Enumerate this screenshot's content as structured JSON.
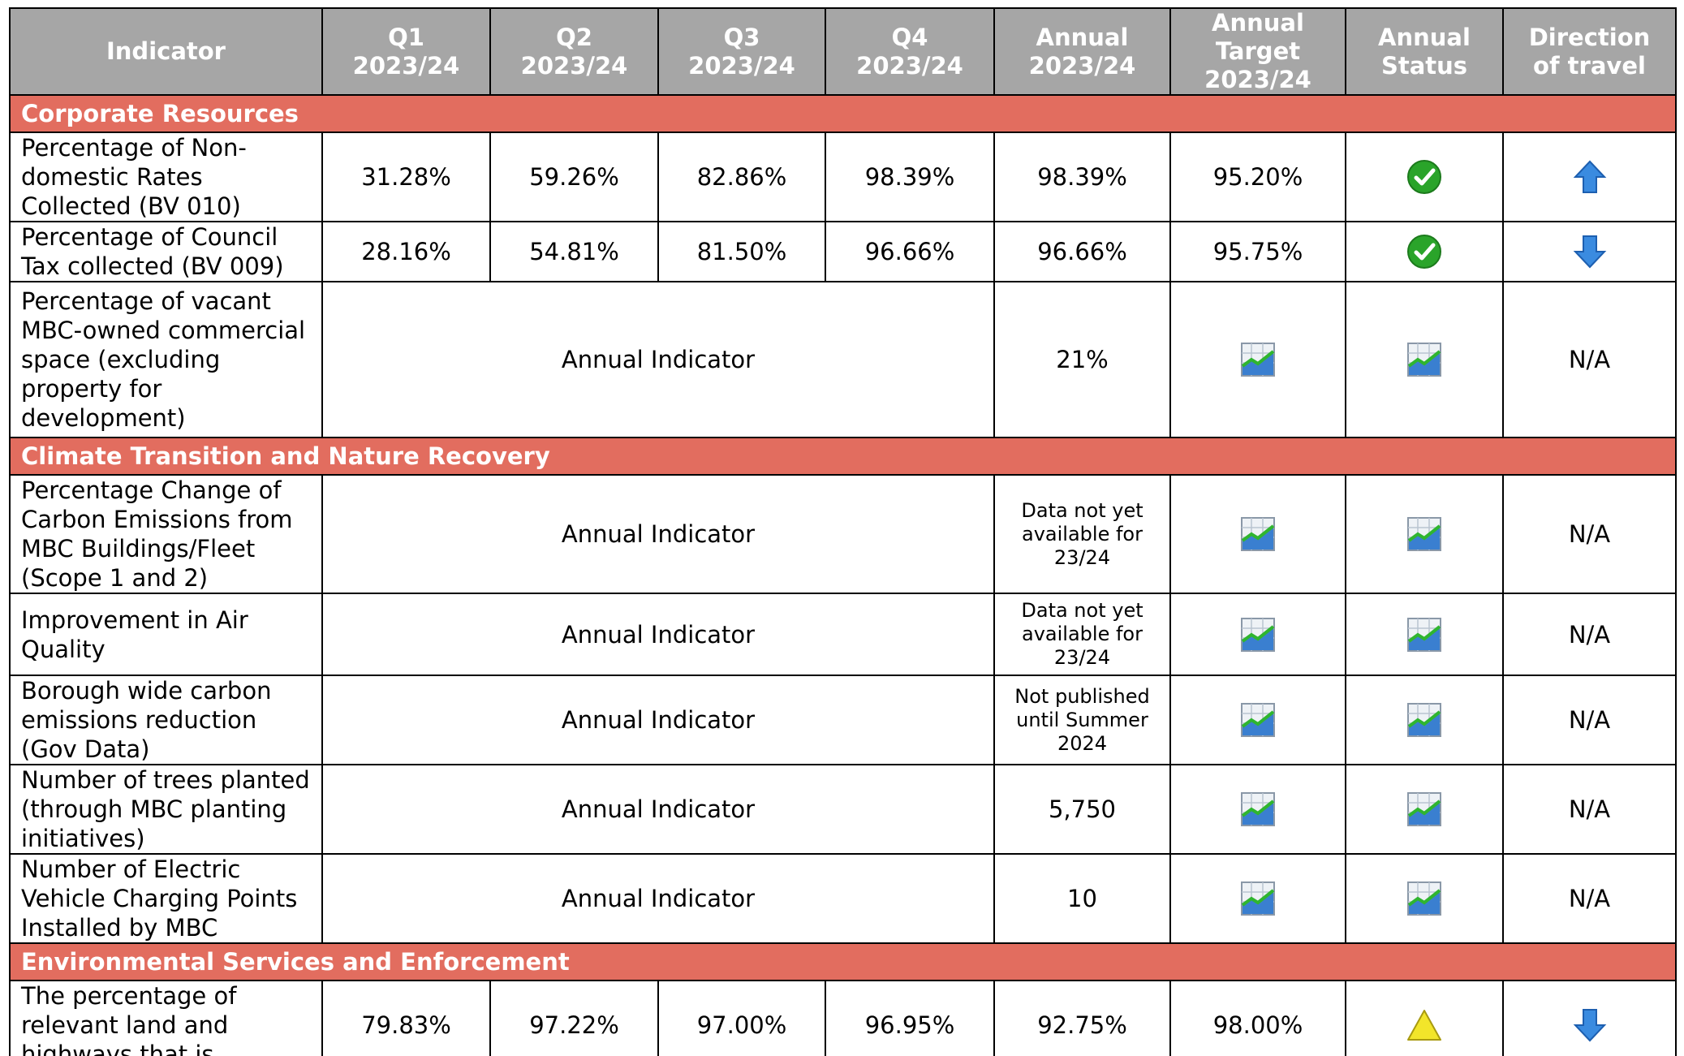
{
  "header": [
    "Indicator",
    "Q1\n2023/24",
    "Q2\n2023/24",
    "Q3\n2023/24",
    "Q4\n2023/24",
    "Annual\n2023/24",
    "Annual\nTarget\n2023/24",
    "Annual\nStatus",
    "Direction\nof travel"
  ],
  "sections": [
    {
      "title": "Corporate Resources",
      "rows": [
        {
          "indicator": "Percentage of Non-domestic Rates Collected (BV 010)",
          "cells": [
            "31.28%",
            "59.26%",
            "82.86%",
            "98.39%",
            "98.39%",
            "95.20%"
          ]
        },
        {
          "indicator": "Percentage of Council Tax collected (BV 009)",
          "cells": [
            "28.16%",
            "54.81%",
            "81.50%",
            "96.66%",
            "96.66%",
            "95.75%"
          ]
        },
        {
          "indicator": "Percentage of vacant MBC-owned commercial space (excluding property for development)",
          "cells": [
            "Annual Indicator",
            "21%",
            "N/A"
          ]
        }
      ]
    },
    {
      "title": "Climate Transition and Nature Recovery",
      "rows": [
        {
          "indicator": "Percentage Change of Carbon Emissions from MBC Buildings/Fleet (Scope 1 and 2)",
          "cells": [
            "Annual Indicator",
            "Data not yet available for 23/24",
            "N/A"
          ]
        },
        {
          "indicator": "Improvement in Air Quality",
          "cells": [
            "Annual Indicator",
            "Data not yet available for 23/24",
            "N/A"
          ]
        },
        {
          "indicator": "Borough wide carbon emissions reduction (Gov Data)",
          "cells": [
            "Annual Indicator",
            "Not published until Summer 2024",
            "N/A"
          ]
        },
        {
          "indicator": "Number of trees planted (through MBC planting initiatives)",
          "cells": [
            "Annual Indicator",
            "5,750",
            "N/A"
          ]
        },
        {
          "indicator": "Number of Electric Vehicle Charging Points Installed by MBC",
          "cells": [
            "Annual Indicator",
            "10",
            "N/A"
          ]
        }
      ]
    },
    {
      "title": "Environmental Services and Enforcement",
      "rows": [
        {
          "indicator": "The percentage of relevant land and highways that is",
          "cells": [
            "79.83%",
            "97.22%",
            "97.00%",
            "96.95%",
            "92.75%",
            "98.00%"
          ]
        }
      ]
    }
  ]
}
